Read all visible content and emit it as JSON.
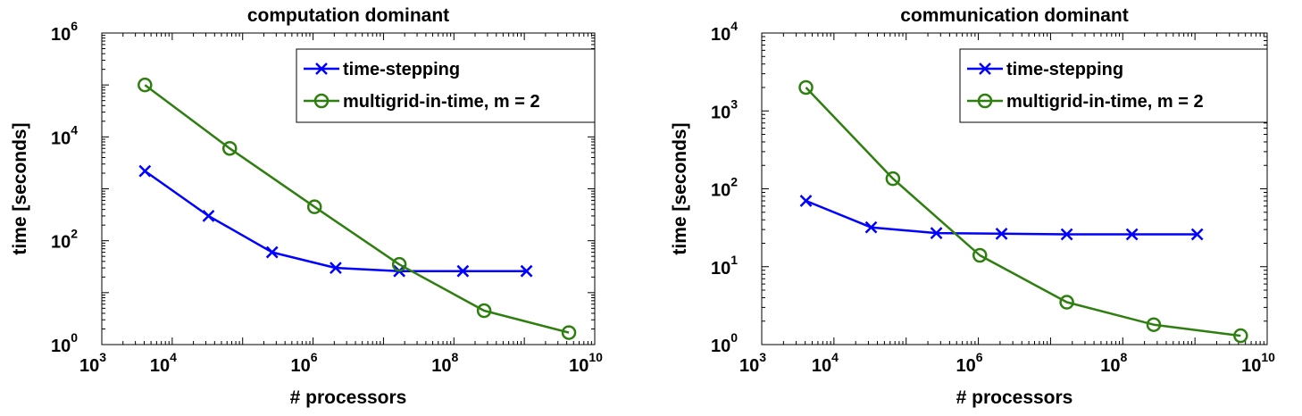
{
  "chart_data": [
    {
      "type": "line",
      "title": "computation dominant",
      "xlabel": "# processors",
      "ylabel": "time [seconds]",
      "xscale": "log",
      "yscale": "log",
      "xlim": [
        1000,
        10000000000
      ],
      "ylim": [
        1,
        1000000
      ],
      "x_ticks": [
        {
          "base": "10",
          "exp": "3"
        },
        {
          "base": "10",
          "exp": "4"
        },
        {
          "base": "10",
          "exp": "6"
        },
        {
          "base": "10",
          "exp": "8"
        },
        {
          "base": "10",
          "exp": "10"
        }
      ],
      "y_ticks": [
        {
          "base": "10",
          "exp": "0"
        },
        {
          "base": "10",
          "exp": "2"
        },
        {
          "base": "10",
          "exp": "4"
        },
        {
          "base": "10",
          "exp": "6"
        }
      ],
      "legend_position": "top-right",
      "grid": false,
      "series": [
        {
          "name": "time-stepping",
          "color": "#0000ff",
          "marker": "x",
          "x": [
            4096,
            32768,
            262144,
            2097152,
            16777216,
            134217728,
            1073741824
          ],
          "y": [
            2200,
            300,
            60,
            30,
            26,
            26,
            26
          ]
        },
        {
          "name": "multigrid-in-time, m = 2",
          "color": "#2f7f10",
          "marker": "o",
          "x": [
            4096,
            65536,
            1048576,
            16777216,
            268435456,
            4294967296
          ],
          "y": [
            100000,
            6000,
            450,
            35,
            4.5,
            1.7
          ]
        }
      ]
    },
    {
      "type": "line",
      "title": "communication dominant",
      "xlabel": "# processors",
      "ylabel": "time [seconds]",
      "xscale": "log",
      "yscale": "log",
      "xlim": [
        1000,
        10000000000
      ],
      "ylim": [
        1,
        10000
      ],
      "x_ticks": [
        {
          "base": "10",
          "exp": "3"
        },
        {
          "base": "10",
          "exp": "4"
        },
        {
          "base": "10",
          "exp": "6"
        },
        {
          "base": "10",
          "exp": "8"
        },
        {
          "base": "10",
          "exp": "10"
        }
      ],
      "y_ticks": [
        {
          "base": "10",
          "exp": "0"
        },
        {
          "base": "10",
          "exp": "1"
        },
        {
          "base": "10",
          "exp": "2"
        },
        {
          "base": "10",
          "exp": "3"
        },
        {
          "base": "10",
          "exp": "4"
        }
      ],
      "legend_position": "top-right",
      "grid": false,
      "series": [
        {
          "name": "time-stepping",
          "color": "#0000ff",
          "marker": "x",
          "x": [
            4096,
            32768,
            262144,
            2097152,
            16777216,
            134217728,
            1073741824
          ],
          "y": [
            70,
            32,
            27,
            26.5,
            26,
            26,
            26
          ]
        },
        {
          "name": "multigrid-in-time, m = 2",
          "color": "#2f7f10",
          "marker": "o",
          "x": [
            4096,
            65536,
            1048576,
            16777216,
            268435456,
            4294967296
          ],
          "y": [
            2000,
            135,
            14,
            3.5,
            1.8,
            1.3
          ]
        }
      ]
    }
  ]
}
